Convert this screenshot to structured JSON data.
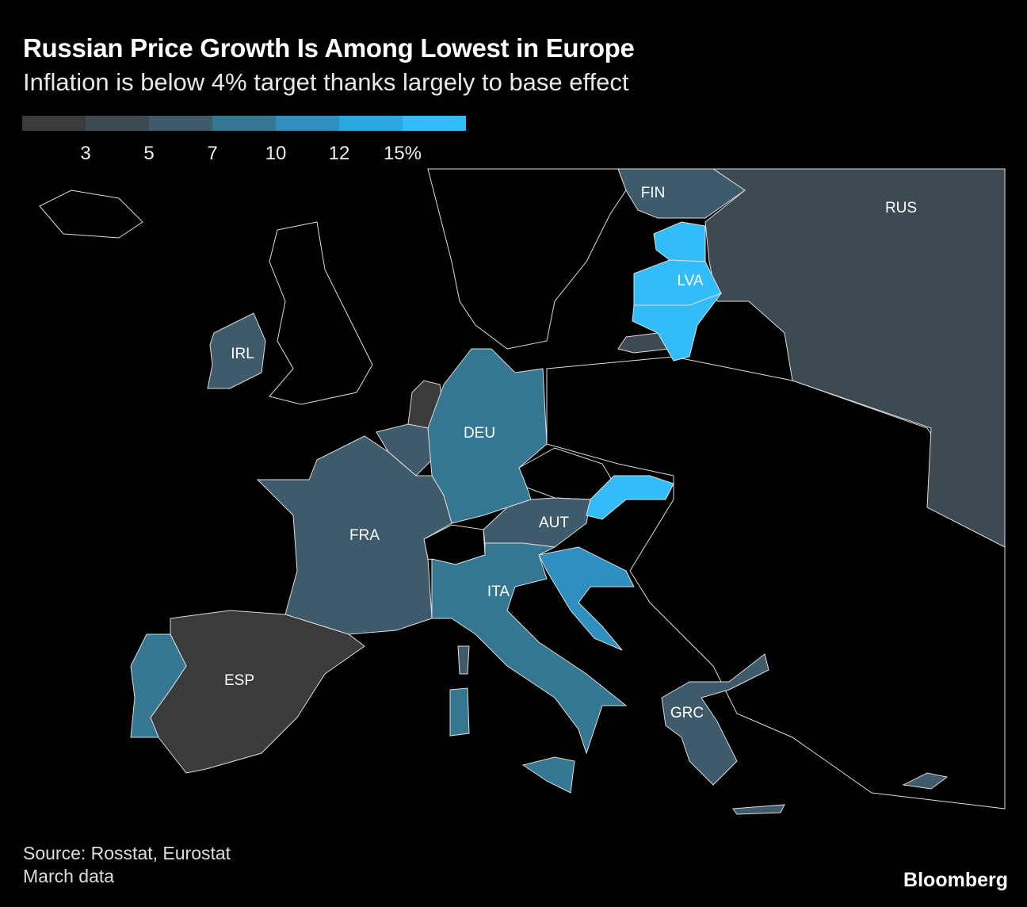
{
  "title": "Russian Price Growth Is Among Lowest in Europe",
  "subtitle": "Inflation is below 4% target thanks largely to base effect",
  "legend": {
    "colors": [
      "#3a3b3d",
      "#3e4a52",
      "#3f5b6b",
      "#357791",
      "#2f8fbf",
      "#2aa7e0",
      "#33bdf8"
    ],
    "ticks": [
      "3",
      "5",
      "7",
      "10",
      "12",
      "15%"
    ]
  },
  "countries": {
    "RUS": {
      "label": "RUS",
      "bin": 1
    },
    "FIN": {
      "label": "FIN",
      "bin": 2
    },
    "LVA": {
      "label": "LVA",
      "bin": 6
    },
    "IRL": {
      "label": "IRL",
      "bin": 2
    },
    "DEU": {
      "label": "DEU",
      "bin": 3
    },
    "FRA": {
      "label": "FRA",
      "bin": 2
    },
    "ESP": {
      "label": "ESP",
      "bin": 0
    },
    "ITA": {
      "label": "ITA",
      "bin": 3
    },
    "AUT": {
      "label": "AUT",
      "bin": 2
    },
    "GRC": {
      "label": "GRC",
      "bin": 2
    },
    "SVK": {
      "bin": 6
    },
    "EST": {
      "bin": 6
    },
    "LTU": {
      "bin": 6
    },
    "PRT": {
      "bin": 3
    },
    "NLD": {
      "bin": 0
    },
    "BEL": {
      "bin": 2
    },
    "HRV": {
      "bin": 4
    },
    "SVN": {
      "bin": 4
    },
    "CYP": {
      "bin": 2
    }
  },
  "source": "Source: Rosstat, Eurostat",
  "note": "March data",
  "logo": "Bloomberg"
}
